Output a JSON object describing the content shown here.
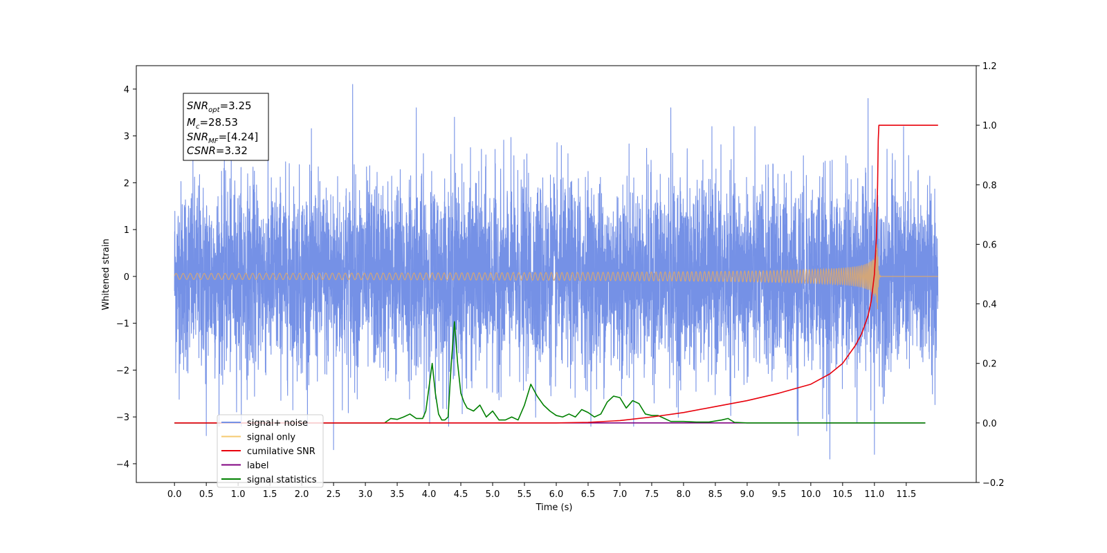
{
  "chart_data": {
    "type": "line",
    "title": "",
    "xlabel": "Time (s)",
    "ylabel": "Whitened strain",
    "xlim": [
      -0.6,
      12.6
    ],
    "ylim": [
      -4.4,
      4.5
    ],
    "y2lim": [
      -0.2,
      1.2
    ],
    "grid": false,
    "legend_position": "lower-left",
    "x_ticks": [
      "0.0",
      "0.5",
      "1.0",
      "1.5",
      "2.0",
      "2.5",
      "3.0",
      "3.5",
      "4.0",
      "4.5",
      "5.0",
      "5.5",
      "6.0",
      "6.5",
      "7.0",
      "7.5",
      "8.0",
      "8.5",
      "9.0",
      "9.5",
      "10.0",
      "10.5",
      "11.0",
      "11.5"
    ],
    "y_ticks": [
      "4",
      "3",
      "2",
      "1",
      "0",
      "−1",
      "−2",
      "−3",
      "−4"
    ],
    "y2_ticks": [
      "1.2",
      "1.0",
      "0.8",
      "0.6",
      "0.4",
      "0.2",
      "0.0",
      "−0.2"
    ],
    "annotation": {
      "snr_opt_base": "SNR",
      "snr_opt_sub": "opt",
      "snr_opt_value": "=3.25",
      "mc_base": "M",
      "mc_sub": "c",
      "mc_value": "=28.53",
      "snr_mf_base": "SNR",
      "snr_mf_sub": "MF",
      "snr_mf_value": "=[4.24]",
      "csnr_base": "CSNR",
      "csnr_value": "=3.32"
    },
    "series": [
      {
        "name": "signal+ noise",
        "color": "#7591e6",
        "axis": "left",
        "description": "noise envelope approximately ±2.5 with spikes",
        "spikes": [
          {
            "x": 2.8,
            "y": 4.1
          },
          {
            "x": 10.9,
            "y": 3.8
          },
          {
            "x": 3.8,
            "y": 3.6
          },
          {
            "x": 9.8,
            "y": 3.5
          },
          {
            "x": 7.8,
            "y": 3.6
          },
          {
            "x": 4.4,
            "y": 3.4
          },
          {
            "x": 2.5,
            "y": -3.7
          },
          {
            "x": 10.3,
            "y": -3.9
          },
          {
            "x": 11.0,
            "y": -3.8
          },
          {
            "x": 9.8,
            "y": -3.4
          },
          {
            "x": 0.5,
            "y": -3.4
          },
          {
            "x": 10.25,
            "y": -3.3
          }
        ]
      },
      {
        "name": "signal only",
        "color": "#f5c96f",
        "axis": "left",
        "chirp": {
          "start": 0.0,
          "merger": 11.05,
          "end": 12.0,
          "peak_amplitude": 0.7
        }
      },
      {
        "name": "cumilative SNR",
        "color": "#e8000b",
        "axis": "right",
        "x": [
          0.0,
          6.0,
          6.5,
          7.0,
          7.5,
          8.0,
          8.5,
          9.0,
          9.5,
          10.0,
          10.3,
          10.5,
          10.7,
          10.8,
          10.9,
          10.95,
          11.0,
          11.03,
          11.05,
          11.06,
          11.07,
          12.0
        ],
        "y": [
          0.0,
          0.0,
          0.002,
          0.008,
          0.02,
          0.035,
          0.055,
          0.075,
          0.1,
          0.13,
          0.165,
          0.2,
          0.26,
          0.3,
          0.36,
          0.41,
          0.5,
          0.62,
          0.8,
          0.95,
          1.0,
          1.0
        ]
      },
      {
        "name": "label",
        "color": "#800080",
        "axis": "right",
        "x": [
          0.0,
          11.8
        ],
        "y": [
          0.0,
          0.0
        ]
      },
      {
        "name": "signal statistics",
        "color": "#008000",
        "axis": "right",
        "x": [
          0.0,
          3.0,
          3.3,
          3.4,
          3.5,
          3.6,
          3.7,
          3.8,
          3.9,
          3.95,
          4.0,
          4.05,
          4.1,
          4.15,
          4.2,
          4.25,
          4.3,
          4.35,
          4.4,
          4.45,
          4.5,
          4.55,
          4.6,
          4.7,
          4.8,
          4.9,
          5.0,
          5.1,
          5.2,
          5.3,
          5.4,
          5.5,
          5.6,
          5.7,
          5.8,
          5.9,
          6.0,
          6.1,
          6.2,
          6.3,
          6.4,
          6.5,
          6.6,
          6.7,
          6.8,
          6.9,
          7.0,
          7.1,
          7.2,
          7.3,
          7.4,
          7.5,
          7.6,
          7.7,
          7.8,
          8.0,
          8.2,
          8.4,
          8.6,
          8.7,
          8.8,
          9.0,
          11.8
        ],
        "y": [
          0.0,
          0.0,
          0.0,
          0.015,
          0.012,
          0.02,
          0.03,
          0.015,
          0.015,
          0.04,
          0.12,
          0.2,
          0.1,
          0.03,
          0.01,
          0.01,
          0.02,
          0.2,
          0.34,
          0.2,
          0.1,
          0.07,
          0.05,
          0.04,
          0.06,
          0.02,
          0.04,
          0.01,
          0.01,
          0.02,
          0.01,
          0.06,
          0.13,
          0.09,
          0.06,
          0.04,
          0.025,
          0.02,
          0.03,
          0.02,
          0.045,
          0.035,
          0.02,
          0.03,
          0.07,
          0.09,
          0.085,
          0.05,
          0.075,
          0.065,
          0.03,
          0.025,
          0.025,
          0.015,
          0.005,
          0.005,
          0.003,
          0.003,
          0.01,
          0.015,
          0.002,
          0.0,
          0.0
        ]
      }
    ]
  }
}
